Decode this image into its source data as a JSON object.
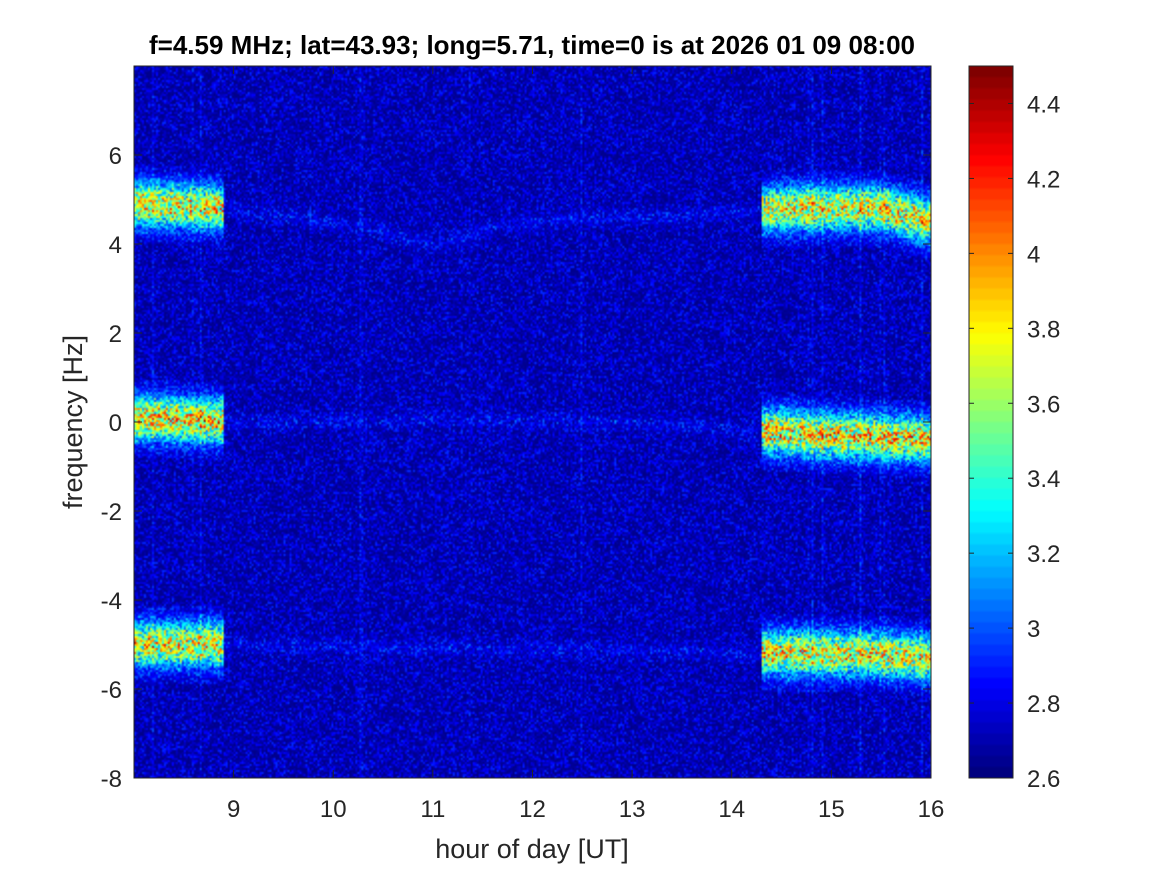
{
  "chart_data": {
    "type": "heatmap",
    "title": "f=4.59 MHz;  lat=43.93; long=5.71, time=0 is at 2026 01 09 08:00",
    "xlabel": "hour of day [UT]",
    "ylabel": "frequency [Hz]",
    "xlim": [
      8,
      16
    ],
    "ylim": [
      -8,
      8
    ],
    "xticks": [
      9,
      10,
      11,
      12,
      13,
      14,
      15,
      16
    ],
    "yticks": [
      -8,
      -6,
      -4,
      -2,
      0,
      2,
      4,
      6
    ],
    "colorbar": {
      "colormap": "jet",
      "clim": [
        2.6,
        4.5
      ],
      "ticks": [
        2.6,
        2.8,
        3,
        3.2,
        3.4,
        3.6,
        3.8,
        4,
        4.2,
        4.4
      ]
    },
    "grid": false,
    "background_level": 2.8,
    "features": [
      {
        "label": "upper echo",
        "points": [
          [
            8.0,
            4.9
          ],
          [
            8.9,
            4.8
          ],
          [
            10.0,
            4.5
          ],
          [
            11.0,
            4.0
          ],
          [
            11.7,
            4.4
          ],
          [
            12.5,
            4.6
          ],
          [
            13.5,
            4.6
          ],
          [
            14.5,
            4.8
          ],
          [
            15.5,
            4.8
          ],
          [
            16.0,
            4.5
          ]
        ],
        "peak": 4.3
      },
      {
        "label": "carrier line",
        "points": [
          [
            8.0,
            0.1
          ],
          [
            9.0,
            0.0
          ],
          [
            11.0,
            0.05
          ],
          [
            13.0,
            0.0
          ],
          [
            14.2,
            -0.2
          ],
          [
            15.0,
            -0.3
          ],
          [
            16.0,
            -0.4
          ]
        ],
        "peak": 4.4
      },
      {
        "label": "lower echo",
        "points": [
          [
            8.0,
            -5.0
          ],
          [
            8.9,
            -5.0
          ],
          [
            14.5,
            -5.2
          ],
          [
            15.3,
            -5.2
          ],
          [
            16.0,
            -5.3
          ]
        ],
        "peak": 4.3
      }
    ]
  }
}
